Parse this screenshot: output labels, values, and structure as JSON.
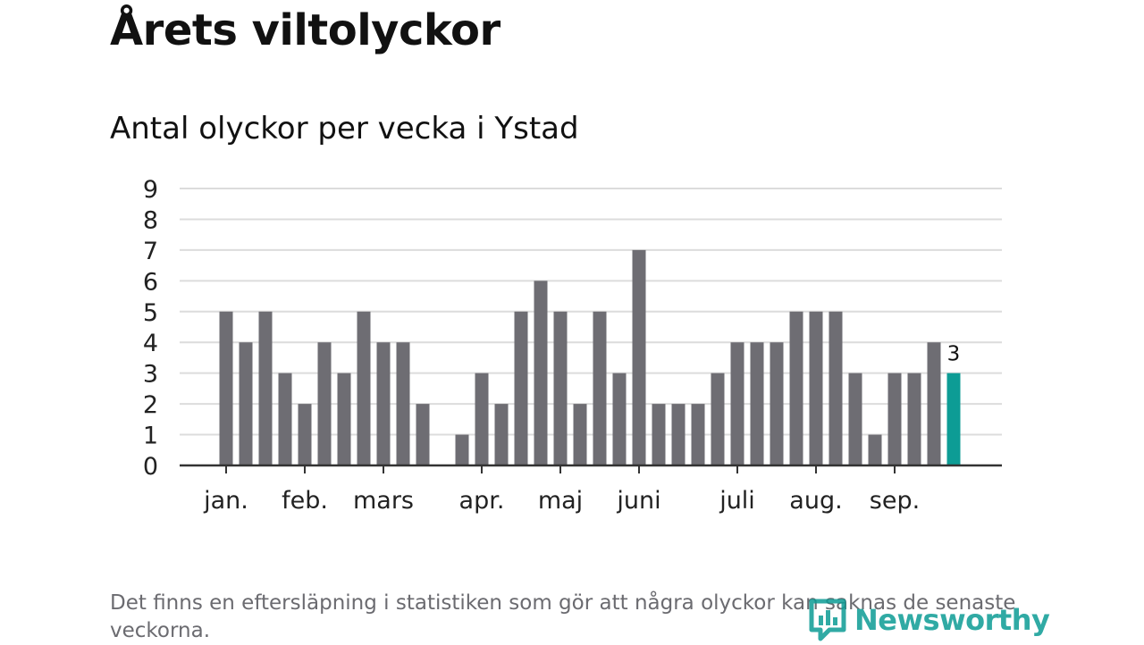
{
  "title": "Årets viltolyckor",
  "subtitle": "Antal olyckor per vecka i Ystad",
  "footnote": "Det finns en eftersläpning i statistiken som gör att några olyckor kan saknas de senaste veckorna.",
  "logo": {
    "text": "Newsworthy",
    "icon": "newsworthy-logo-icon",
    "color": "#0d9c95"
  },
  "chart_data": {
    "type": "bar",
    "title": "Antal olyckor per vecka i Ystad",
    "xlabel": "",
    "ylabel": "",
    "ylim": [
      0,
      9
    ],
    "yticks": [
      0,
      1,
      2,
      3,
      4,
      5,
      6,
      7,
      8,
      9
    ],
    "grid": true,
    "bar_color": "#6e6d73",
    "highlight_color": "#0d9c95",
    "values": [
      5,
      4,
      5,
      3,
      2,
      4,
      3,
      5,
      4,
      4,
      2,
      0,
      1,
      3,
      2,
      5,
      6,
      5,
      2,
      5,
      3,
      7,
      2,
      2,
      2,
      3,
      4,
      4,
      4,
      5,
      5,
      5,
      3,
      1,
      3,
      3,
      4,
      3
    ],
    "highlight_index": 37,
    "highlight_label": "3",
    "months": [
      {
        "label": "jan.",
        "position": 0.5
      },
      {
        "label": "feb.",
        "position": 4.5
      },
      {
        "label": "mars",
        "position": 8.5
      },
      {
        "label": "apr.",
        "position": 13.5
      },
      {
        "label": "maj",
        "position": 17.5
      },
      {
        "label": "juni",
        "position": 21.5
      },
      {
        "label": "juli",
        "position": 26.5
      },
      {
        "label": "aug.",
        "position": 30.5
      },
      {
        "label": "sep.",
        "position": 34.5
      }
    ]
  }
}
